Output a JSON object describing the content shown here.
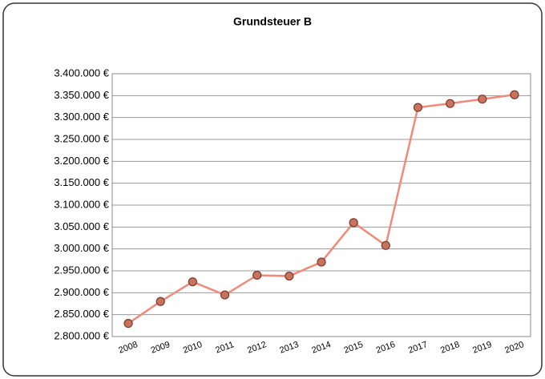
{
  "chart_data": {
    "type": "line",
    "title": "Grundsteuer B",
    "categories": [
      "2008",
      "2009",
      "2010",
      "2011",
      "2012",
      "2013",
      "2014",
      "2015",
      "2016",
      "2017",
      "2018",
      "2019",
      "2020"
    ],
    "series": [
      {
        "name": "Grundsteuer B",
        "color": "#f08a7a",
        "marker_color": "#c9735e",
        "values": [
          2830000,
          2880000,
          2925000,
          2895000,
          2940000,
          2938000,
          2970000,
          3060000,
          3008000,
          3323000,
          3332000,
          3342000,
          3352000
        ]
      }
    ],
    "ylim": [
      2800000,
      3400000
    ],
    "yticks": [
      {
        "value": 2800000,
        "label": "2.800.000 €"
      },
      {
        "value": 2850000,
        "label": "2.850.000 €"
      },
      {
        "value": 2900000,
        "label": "2.900.000 €"
      },
      {
        "value": 2950000,
        "label": "2.950.000 €"
      },
      {
        "value": 3000000,
        "label": "3.000.000 €"
      },
      {
        "value": 3050000,
        "label": "3.050.000 €"
      },
      {
        "value": 3100000,
        "label": "3.100.000 €"
      },
      {
        "value": 3150000,
        "label": "3.150.000 €"
      },
      {
        "value": 3200000,
        "label": "3.200.000 €"
      },
      {
        "value": 3250000,
        "label": "3.250.000 €"
      },
      {
        "value": 3300000,
        "label": "3.300.000 €"
      },
      {
        "value": 3350000,
        "label": "3.350.000 €"
      },
      {
        "value": 3400000,
        "label": "3.400.000 €"
      }
    ],
    "grid": true
  }
}
